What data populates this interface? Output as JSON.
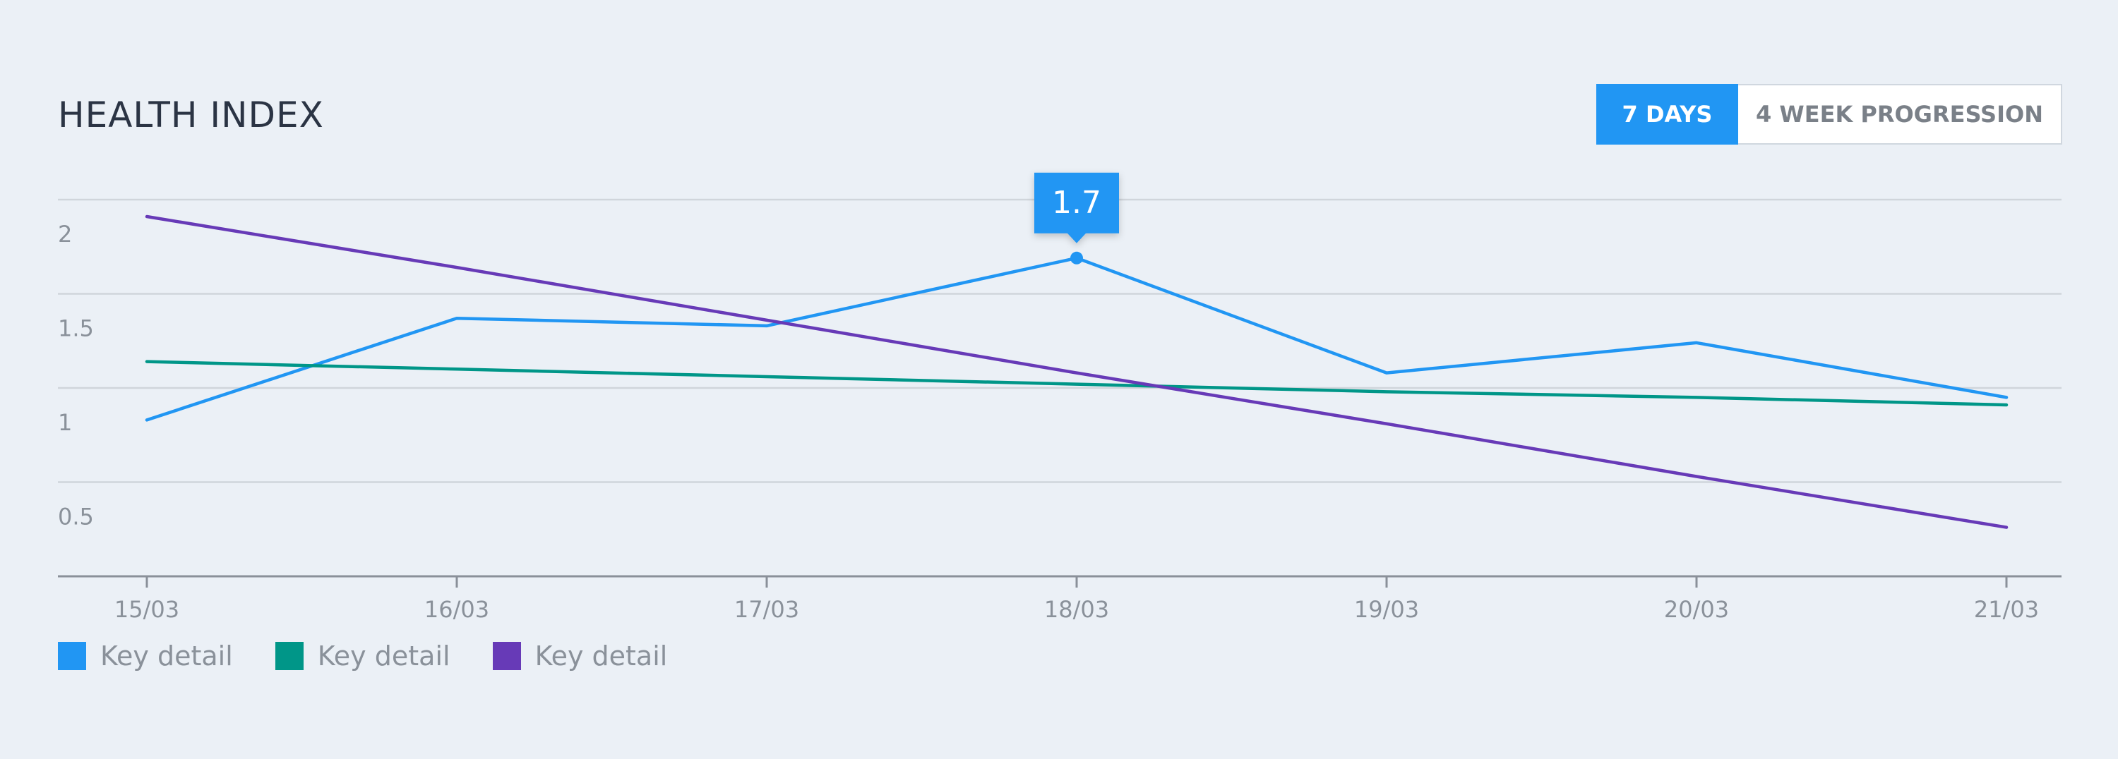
{
  "header": {
    "title": "HEALTH INDEX"
  },
  "toggle": {
    "active_label": "7 DAYS",
    "inactive_label": "4 WEEK PROGRESSION"
  },
  "colors": {
    "background": "#ebf0f6",
    "accent": "#2196f3",
    "grid": "#d0d5db",
    "axis": "#8a9099"
  },
  "tooltip": {
    "series_index": 0,
    "point_index": 3,
    "label": "1.7"
  },
  "chart_data": {
    "type": "line",
    "title": "HEALTH INDEX",
    "xlabel": "",
    "ylabel": "",
    "categories": [
      "15/03",
      "16/03",
      "17/03",
      "18/03",
      "19/03",
      "20/03",
      "21/03"
    ],
    "y_ticks": [
      {
        "value": 0.5,
        "label": "0.5"
      },
      {
        "value": 1,
        "label": "1"
      },
      {
        "value": 1.5,
        "label": "1.5"
      },
      {
        "value": 2,
        "label": "2"
      }
    ],
    "ylim": [
      0,
      2
    ],
    "grid": true,
    "legend_position": "bottom-left",
    "series": [
      {
        "name": "Key detail",
        "color": "#2196f3",
        "values": [
          0.83,
          1.37,
          1.33,
          1.69,
          1.08,
          1.24,
          0.95
        ]
      },
      {
        "name": "Key detail",
        "color": "#009688",
        "values": [
          1.14,
          1.1,
          1.06,
          1.02,
          0.98,
          0.95,
          0.91
        ]
      },
      {
        "name": "Key detail",
        "color": "#673ab7",
        "values": [
          1.91,
          1.64,
          1.36,
          1.08,
          0.81,
          0.53,
          0.26
        ]
      }
    ]
  }
}
